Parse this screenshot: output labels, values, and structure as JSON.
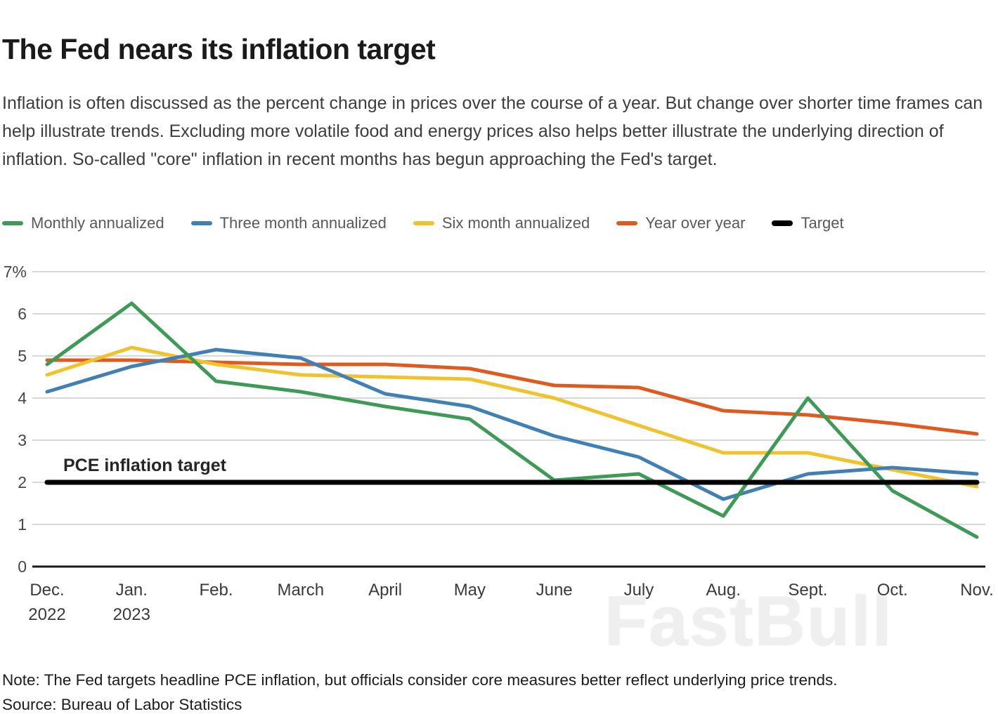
{
  "header": {
    "title": "The Fed nears its inflation target",
    "subtitle": "Inflation is often discussed as the percent change in prices over the course of a year. But change over shorter time frames can help illustrate trends. Excluding more volatile food and energy prices also helps better illustrate the underlying direction of inflation. So-called \"core\" inflation in recent months has begun approaching the Fed's target."
  },
  "legend": {
    "items": [
      {
        "label": "Monthly annualized",
        "color": "#3d9b57",
        "thick": false
      },
      {
        "label": "Three month annualized",
        "color": "#4180b4",
        "thick": false
      },
      {
        "label": "Six month annualized",
        "color": "#f0c32e",
        "thick": false
      },
      {
        "label": "Year over year",
        "color": "#de5a1f",
        "thick": false
      },
      {
        "label": "Target",
        "color": "#000000",
        "thick": true
      }
    ]
  },
  "chart_data": {
    "type": "line",
    "title": "The Fed nears its inflation target",
    "categories": [
      "Dec. 2022",
      "Jan. 2023",
      "Feb.",
      "March",
      "April",
      "May",
      "June",
      "July",
      "Aug.",
      "Sept.",
      "Oct.",
      "Nov."
    ],
    "x_tick_labels": [
      [
        "Dec.",
        "2022"
      ],
      [
        "Jan.",
        "2023"
      ],
      [
        "Feb."
      ],
      [
        "March"
      ],
      [
        "April"
      ],
      [
        "May"
      ],
      [
        "June"
      ],
      [
        "July"
      ],
      [
        "Aug."
      ],
      [
        "Sept."
      ],
      [
        "Oct."
      ],
      [
        "Nov."
      ]
    ],
    "ylim": [
      0,
      7
    ],
    "y_ticks": [
      "7%",
      "6",
      "5",
      "4",
      "3",
      "2",
      "1",
      "0"
    ],
    "grid": true,
    "legend_position": "top",
    "annotation": "PCE inflation target",
    "series": [
      {
        "name": "Year over year",
        "color": "#de5a1f",
        "values": [
          4.9,
          4.9,
          4.85,
          4.8,
          4.8,
          4.7,
          4.3,
          4.25,
          3.7,
          3.6,
          3.4,
          3.15
        ]
      },
      {
        "name": "Six month annualized",
        "color": "#f0c32e",
        "values": [
          4.55,
          5.2,
          4.8,
          4.55,
          4.5,
          4.45,
          4.0,
          3.35,
          2.7,
          2.7,
          2.3,
          1.9
        ]
      },
      {
        "name": "Three month annualized",
        "color": "#4180b4",
        "values": [
          4.15,
          4.75,
          5.15,
          4.95,
          4.1,
          3.8,
          3.1,
          2.6,
          1.6,
          2.2,
          2.35,
          2.2
        ]
      },
      {
        "name": "Monthly annualized",
        "color": "#3d9b57",
        "values": [
          4.8,
          6.25,
          4.4,
          4.15,
          3.8,
          3.5,
          2.05,
          2.2,
          1.2,
          4.0,
          1.8,
          0.7
        ]
      },
      {
        "name": "Target",
        "color": "#000000",
        "values": [
          2,
          2,
          2,
          2,
          2,
          2,
          2,
          2,
          2,
          2,
          2,
          2
        ]
      }
    ]
  },
  "footer": {
    "note": "Note: The Fed targets headline PCE inflation, but officials consider core measures better reflect underlying price trends.",
    "source": "Source: Bureau of Labor Statistics",
    "watermark": "FastBull"
  }
}
